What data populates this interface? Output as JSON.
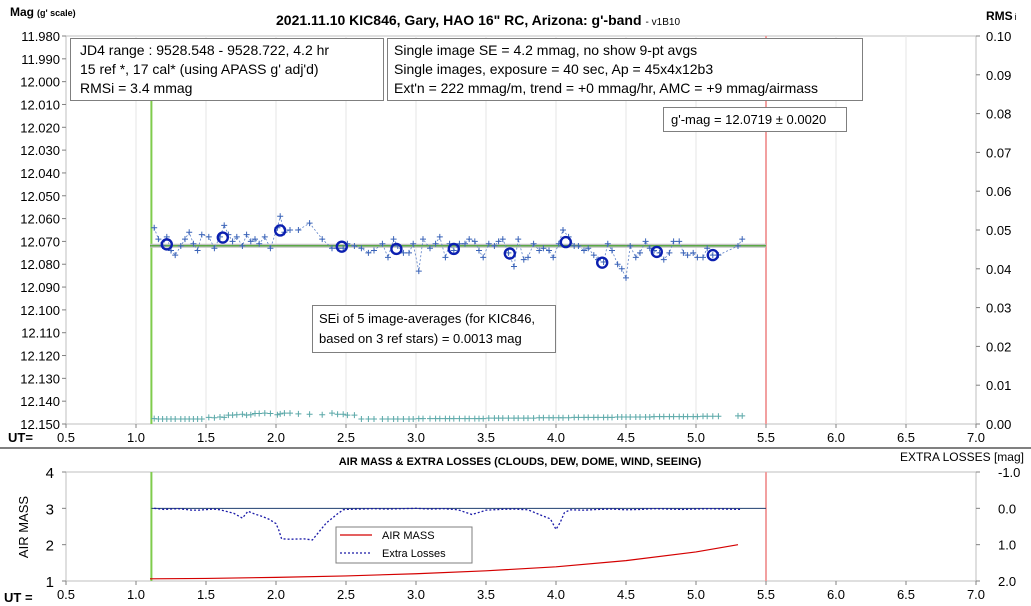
{
  "title_main": "2021.11.10 KIC846, Gary, HAO 16\" RC, Arizona: g'-band",
  "title_version": "- v1B10",
  "top_ylabel_left": "Mag",
  "top_ylabel_left_sub": "(g' scale)",
  "top_ylabel_right": "RMS",
  "top_ylabel_right_sub": "i",
  "ut_label_top": "UT=",
  "ut_label_bottom": "UT =",
  "info_box_1": [
    "JD4 range : 9528.548 - 9528.722,  4.2  hr",
    "15 ref *, 17 cal* (using APASS g' adj'd)",
    "RMSi = 3.4 mmag"
  ],
  "info_box_2": [
    "Single image SE = 4.2 mmag, no show  9-pt avgs",
    "Single images, exposure = 40 sec, Ap = 45x4x12b3",
    "Ext'n = 222 mmag/m, trend = +0 mmag/hr, AMC = +9 mmag/airmass"
  ],
  "gmag_box": "g'-mag = 12.0719 ± 0.0020",
  "sei_box": [
    "SEi of 5 image-averages (for KIC846,",
    "based on 3 ref stars) = 0.0013 mag"
  ],
  "bottom_title": "AIR MASS & EXTRA LOSSES (CLOUDS, DEW, DOME, WIND, SEEING)",
  "bottom_ylabel_left": "AIR MASS",
  "bottom_ylabel_right": "EXTRA LOSSES [mag]",
  "legend": [
    "AIR MASS",
    "Extra Losses"
  ],
  "chart_data": [
    {
      "type": "scatter",
      "x_ticks": [
        "0.5",
        "1.0",
        "1.5",
        "2.0",
        "2.5",
        "3.0",
        "3.5",
        "4.0",
        "4.5",
        "5.0",
        "5.5",
        "6.0",
        "6.5",
        "7.0"
      ],
      "xlim": [
        0.5,
        7.0
      ],
      "y_ticks_left": [
        "11.980",
        "11.990",
        "12.000",
        "12.010",
        "12.020",
        "12.030",
        "12.040",
        "12.050",
        "12.060",
        "12.070",
        "12.080",
        "12.090",
        "12.100",
        "12.110",
        "12.120",
        "12.130",
        "12.140",
        "12.150"
      ],
      "ylim_left": [
        11.98,
        12.15
      ],
      "y_ticks_right": [
        "0.10",
        "0.09",
        "0.08",
        "0.07",
        "0.06",
        "0.05",
        "0.04",
        "0.03",
        "0.02",
        "0.01",
        "0.00"
      ],
      "ylim_right": [
        0.0,
        0.1
      ],
      "start_line_x": 1.11,
      "end_line_x": 5.5,
      "mean_mag": 12.0719,
      "averages_x": [
        1.22,
        1.62,
        2.03,
        2.47,
        2.86,
        3.27,
        3.67,
        4.07,
        4.33,
        4.72,
        5.12
      ],
      "averages_y": [
        12.0713,
        12.0683,
        12.0652,
        12.0723,
        12.0733,
        12.0733,
        12.0753,
        12.0703,
        12.0793,
        12.0746,
        12.076
      ],
      "singles_x": [
        1.13,
        1.16,
        1.19,
        1.22,
        1.25,
        1.28,
        1.32,
        1.35,
        1.38,
        1.41,
        1.44,
        1.47,
        1.52,
        1.56,
        1.6,
        1.63,
        1.66,
        1.69,
        1.72,
        1.76,
        1.79,
        1.82,
        1.85,
        1.88,
        1.92,
        1.96,
        2.01,
        2.03,
        2.06,
        2.1,
        2.16,
        2.24,
        2.33,
        2.4,
        2.44,
        2.48,
        2.51,
        2.56,
        2.61,
        2.66,
        2.7,
        2.76,
        2.8,
        2.84,
        2.87,
        2.91,
        2.95,
        2.98,
        3.02,
        3.05,
        3.1,
        3.14,
        3.17,
        3.21,
        3.24,
        3.27,
        3.31,
        3.35,
        3.38,
        3.42,
        3.45,
        3.48,
        3.52,
        3.56,
        3.59,
        3.62,
        3.66,
        3.7,
        3.73,
        3.77,
        3.8,
        3.84,
        3.88,
        3.91,
        3.95,
        3.98,
        4.02,
        4.05,
        4.09,
        4.13,
        4.16,
        4.2,
        4.23,
        4.27,
        4.3,
        4.34,
        4.37,
        4.4,
        4.44,
        4.47,
        4.5,
        4.53,
        4.57,
        4.6,
        4.64,
        4.67,
        4.7,
        4.74,
        4.77,
        4.81,
        4.84,
        4.88,
        4.91,
        4.94,
        4.98,
        5.01,
        5.05,
        5.08,
        5.12,
        5.16,
        5.3,
        5.33
      ],
      "singles_y": [
        12.064,
        12.069,
        12.072,
        12.068,
        12.074,
        12.076,
        12.072,
        12.069,
        12.066,
        12.071,
        12.074,
        12.067,
        12.068,
        12.073,
        12.068,
        12.063,
        12.067,
        12.07,
        12.068,
        12.072,
        12.067,
        12.07,
        12.069,
        12.071,
        12.068,
        12.073,
        12.064,
        12.059,
        12.066,
        12.065,
        12.065,
        12.062,
        12.069,
        12.073,
        12.073,
        12.073,
        12.071,
        12.072,
        12.073,
        12.075,
        12.074,
        12.071,
        12.077,
        12.069,
        12.072,
        12.075,
        12.075,
        12.071,
        12.083,
        12.069,
        12.073,
        12.071,
        12.068,
        12.077,
        12.071,
        12.074,
        12.071,
        12.071,
        12.069,
        12.07,
        12.074,
        12.077,
        12.071,
        12.072,
        12.07,
        12.069,
        12.075,
        12.081,
        12.069,
        12.078,
        12.077,
        12.071,
        12.074,
        12.073,
        12.074,
        12.077,
        12.071,
        12.065,
        12.068,
        12.072,
        12.072,
        12.074,
        12.073,
        12.076,
        12.078,
        12.079,
        12.071,
        12.074,
        12.08,
        12.082,
        12.086,
        12.072,
        12.077,
        12.075,
        12.07,
        12.073,
        12.074,
        12.075,
        12.078,
        12.075,
        12.07,
        12.07,
        12.075,
        12.076,
        12.075,
        12.077,
        12.077,
        12.073,
        12.076,
        12.076,
        12.072,
        12.069
      ],
      "rms_x": [
        1.13,
        1.16,
        1.19,
        1.22,
        1.25,
        1.28,
        1.32,
        1.35,
        1.38,
        1.41,
        1.44,
        1.47,
        1.52,
        1.56,
        1.6,
        1.63,
        1.66,
        1.69,
        1.72,
        1.76,
        1.79,
        1.82,
        1.85,
        1.88,
        1.92,
        1.96,
        2.01,
        2.03,
        2.06,
        2.1,
        2.16,
        2.24,
        2.33,
        2.4,
        2.44,
        2.48,
        2.51,
        2.56,
        2.61,
        2.66,
        2.7,
        2.76,
        2.8,
        2.84,
        2.87,
        2.91,
        2.95,
        2.98,
        3.02,
        3.05,
        3.1,
        3.14,
        3.17,
        3.21,
        3.24,
        3.27,
        3.31,
        3.35,
        3.38,
        3.42,
        3.45,
        3.48,
        3.52,
        3.56,
        3.59,
        3.62,
        3.66,
        3.7,
        3.73,
        3.77,
        3.8,
        3.84,
        3.88,
        3.91,
        3.95,
        3.98,
        4.02,
        4.05,
        4.09,
        4.13,
        4.16,
        4.2,
        4.23,
        4.27,
        4.3,
        4.34,
        4.37,
        4.4,
        4.44,
        4.47,
        4.5,
        4.53,
        4.57,
        4.6,
        4.64,
        4.67,
        4.7,
        4.74,
        4.77,
        4.81,
        4.84,
        4.88,
        4.91,
        4.94,
        4.98,
        5.01,
        5.05,
        5.08,
        5.12,
        5.16,
        5.3,
        5.33
      ],
      "rms_y": [
        0.0014,
        0.0013,
        0.0013,
        0.0013,
        0.0013,
        0.0013,
        0.0013,
        0.0013,
        0.0013,
        0.0013,
        0.0013,
        0.0013,
        0.0017,
        0.0016,
        0.0018,
        0.0017,
        0.0023,
        0.0023,
        0.0024,
        0.0025,
        0.0023,
        0.0024,
        0.0027,
        0.0027,
        0.0028,
        0.0027,
        0.0024,
        0.0026,
        0.0028,
        0.0028,
        0.0026,
        0.0025,
        0.0024,
        0.0028,
        0.0025,
        0.0025,
        0.0023,
        0.0023,
        0.0013,
        0.0013,
        0.0013,
        0.0013,
        0.0013,
        0.0013,
        0.0013,
        0.0013,
        0.0013,
        0.0013,
        0.0014,
        0.0014,
        0.0014,
        0.0014,
        0.0014,
        0.0014,
        0.0014,
        0.0014,
        0.0014,
        0.0014,
        0.0014,
        0.0014,
        0.0014,
        0.0014,
        0.0015,
        0.0015,
        0.0015,
        0.0015,
        0.0015,
        0.0015,
        0.0015,
        0.0015,
        0.0015,
        0.0015,
        0.0016,
        0.0016,
        0.0016,
        0.0016,
        0.0016,
        0.0016,
        0.0016,
        0.0017,
        0.0017,
        0.0017,
        0.0017,
        0.0017,
        0.0017,
        0.0017,
        0.0017,
        0.0017,
        0.0018,
        0.0018,
        0.0018,
        0.0018,
        0.0018,
        0.0018,
        0.0018,
        0.0018,
        0.0019,
        0.0019,
        0.0019,
        0.0019,
        0.0019,
        0.0019,
        0.0019,
        0.0019,
        0.0019,
        0.0019,
        0.002,
        0.002,
        0.002,
        0.002,
        0.0021,
        0.0021
      ]
    },
    {
      "type": "line",
      "x_ticks": [
        "0.5",
        "1.0",
        "1.5",
        "2.0",
        "2.5",
        "3.0",
        "3.5",
        "4.0",
        "4.5",
        "5.0",
        "5.5",
        "6.0",
        "6.5",
        "7.0"
      ],
      "xlim": [
        0.5,
        7.0
      ],
      "y_ticks_left": [
        "4",
        "3",
        "2",
        "1"
      ],
      "ylim_left": [
        1,
        4
      ],
      "y_ticks_right": [
        "-1.0",
        "0.0",
        "1.0",
        "2.0"
      ],
      "ylim_right": [
        -1.0,
        2.0
      ],
      "start_line_x": 1.11,
      "end_line_x": 5.5,
      "airmass_x": [
        1.1,
        1.5,
        2.0,
        2.5,
        3.0,
        3.5,
        4.0,
        4.5,
        5.0,
        5.3
      ],
      "airmass_y": [
        1.06,
        1.07,
        1.1,
        1.14,
        1.2,
        1.28,
        1.39,
        1.56,
        1.8,
        2.0
      ],
      "losses_x": [
        1.13,
        1.2,
        1.3,
        1.4,
        1.45,
        1.55,
        1.6,
        1.7,
        1.76,
        1.8,
        1.85,
        1.9,
        1.95,
        2.0,
        2.02,
        2.04,
        2.1,
        2.2,
        2.26,
        2.3,
        2.36,
        2.44,
        2.48,
        2.5,
        2.6,
        2.7,
        2.8,
        2.9,
        3.0,
        3.1,
        3.2,
        3.3,
        3.4,
        3.46,
        3.5,
        3.6,
        3.7,
        3.8,
        3.9,
        3.96,
        4.0,
        4.03,
        4.06,
        4.1,
        4.2,
        4.3,
        4.4,
        4.5,
        4.6,
        4.7,
        4.8,
        4.9,
        5.0,
        5.1,
        5.2,
        5.32
      ],
      "losses_y": [
        0.0,
        0.03,
        0.01,
        0.05,
        0.05,
        0.02,
        0.04,
        0.14,
        0.27,
        0.08,
        0.16,
        0.22,
        0.3,
        0.42,
        0.6,
        0.84,
        0.85,
        0.84,
        0.87,
        0.68,
        0.4,
        0.15,
        0.04,
        0.03,
        0.02,
        0.01,
        0.02,
        0.01,
        0.0,
        0.02,
        0.01,
        0.04,
        0.17,
        0.1,
        0.05,
        0.03,
        0.02,
        0.04,
        0.2,
        0.29,
        0.58,
        0.39,
        0.12,
        0.04,
        0.05,
        0.03,
        0.02,
        0.04,
        0.03,
        0.01,
        0.02,
        0.03,
        0.02,
        0.01,
        0.02,
        0.03
      ]
    }
  ]
}
